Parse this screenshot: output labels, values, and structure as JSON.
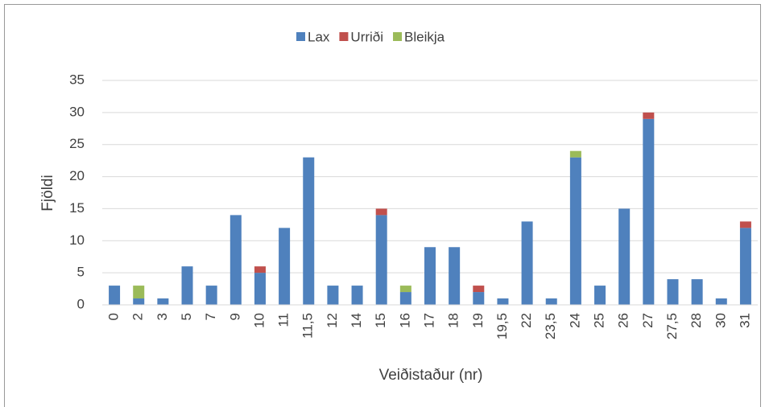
{
  "chart_data": {
    "type": "stacked_bar",
    "xlabel": "Veiðistaður (nr)",
    "ylabel": "Fjöldi",
    "categories": [
      "0",
      "2",
      "3",
      "5",
      "7",
      "9",
      "10",
      "11",
      "11,5",
      "12",
      "14",
      "15",
      "16",
      "17",
      "18",
      "19",
      "19,5",
      "22",
      "23,5",
      "24",
      "25",
      "26",
      "27",
      "27,5",
      "28",
      "30",
      "31"
    ],
    "series": [
      {
        "name": "Lax",
        "color": "#4f81bd",
        "values": [
          3,
          1,
          1,
          6,
          3,
          14,
          5,
          12,
          23,
          3,
          3,
          14,
          2,
          9,
          9,
          2,
          1,
          13,
          1,
          23,
          3,
          15,
          29,
          4,
          4,
          1,
          12
        ]
      },
      {
        "name": "Urriði",
        "color": "#c0504d",
        "values": [
          0,
          0,
          0,
          0,
          0,
          0,
          1,
          0,
          0,
          0,
          0,
          1,
          0,
          0,
          0,
          1,
          0,
          0,
          0,
          0,
          0,
          0,
          1,
          0,
          0,
          0,
          1
        ]
      },
      {
        "name": "Bleikja",
        "color": "#9bbb59",
        "values": [
          0,
          2,
          0,
          0,
          0,
          0,
          0,
          0,
          0,
          0,
          0,
          0,
          1,
          0,
          0,
          0,
          0,
          0,
          0,
          1,
          0,
          0,
          0,
          0,
          0,
          0,
          0
        ]
      }
    ],
    "ylim": [
      0,
      35
    ],
    "yticks": [
      0,
      5,
      10,
      15,
      20,
      25,
      30,
      35
    ],
    "grid": true,
    "legend": "top"
  }
}
